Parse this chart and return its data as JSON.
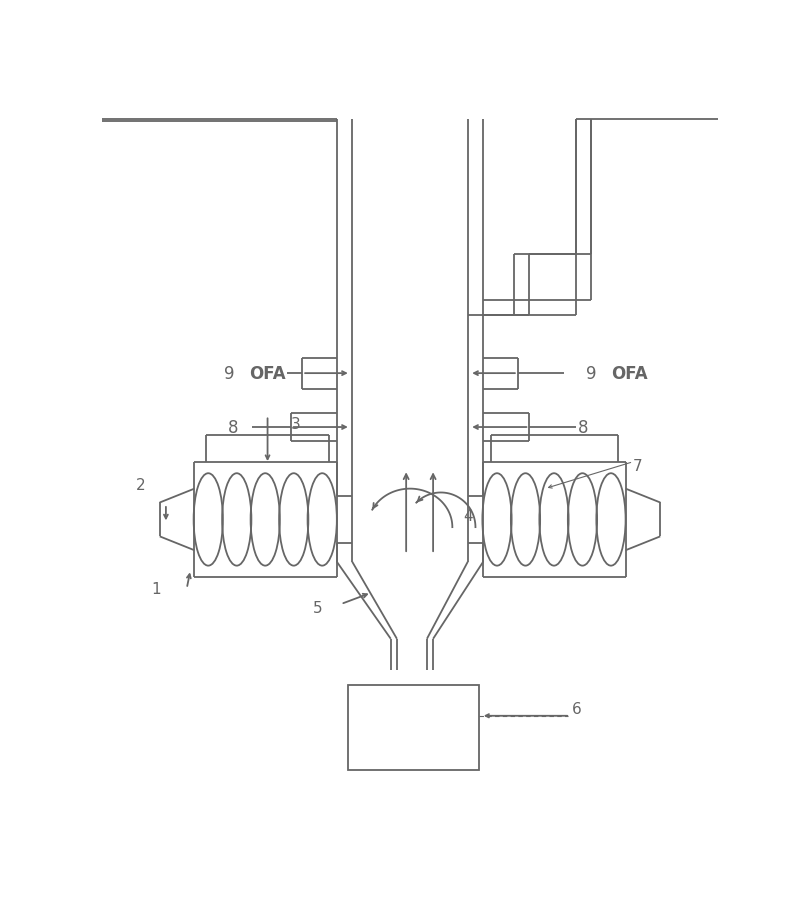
{
  "bg_color": "#ffffff",
  "lc": "#666666",
  "lw": 1.3,
  "fig_w": 8.0,
  "fig_h": 9.04
}
